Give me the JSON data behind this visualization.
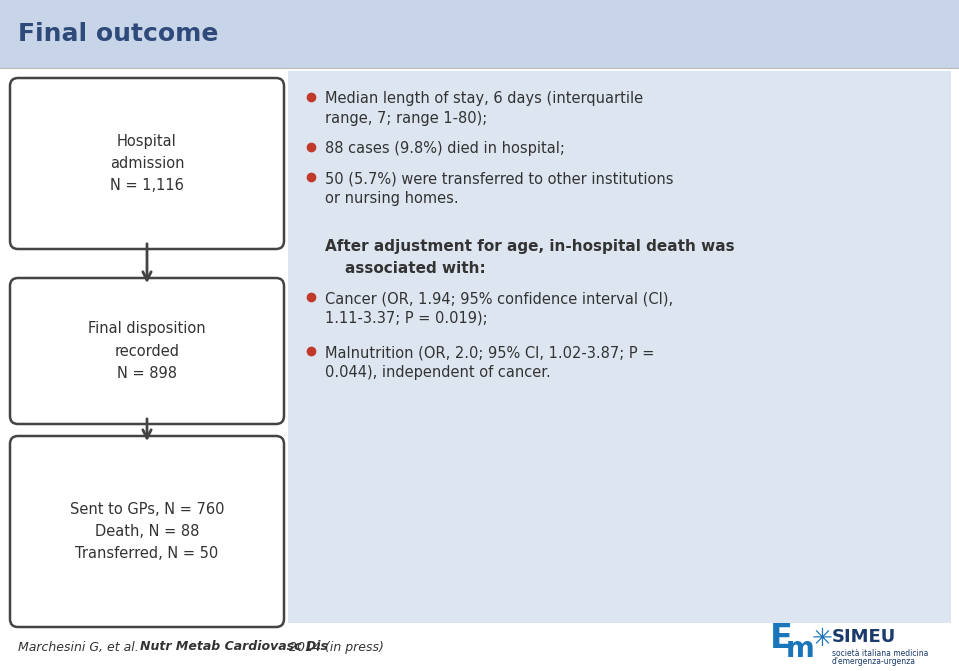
{
  "title": "Final outcome",
  "title_color": "#2E4A7A",
  "title_fontsize": 18,
  "bg_color": "#FFFFFF",
  "header_bar_color": "#C8D4E8",
  "content_bg_color": "#DDE6F0",
  "box_bg": "#FFFFFF",
  "box_border": "#444444",
  "box_texts": [
    [
      "Hospital",
      "admission",
      "N = 1,116"
    ],
    [
      "Final disposition",
      "recorded",
      "N = 898"
    ],
    [
      "Sent to GPs, N = 760",
      "Death, N = 88",
      "Transferred, N = 50"
    ]
  ],
  "bullet_color": "#C0392B",
  "bullet_items_top": [
    "Median length of stay, 6 days (interquartile\nrange, 7; range 1-80);",
    "88 cases (9.8%) died in hospital;",
    "50 (5.7%) were transferred to other institutions\nor nursing homes."
  ],
  "bold_text_line1": "After adjustment for age, in-hospital death was",
  "bold_text_line2": "associated with:",
  "bullet_items_bottom": [
    "Cancer (OR, 1.94; 95% confidence interval (CI),\n1.11-3.37; P = 0.019);",
    "Malnutrition (OR, 2.0; 95% CI, 1.02-3.87; P =\n0.044), independent of cancer."
  ],
  "footer_normal1": "Marchesini G, et al. ",
  "footer_bold": "Nutr Metab Cardiovasc Dis",
  "footer_normal2": " 2014 (in press)",
  "footer_color": "#333333",
  "text_color": "#333333",
  "arrow_color": "#444444",
  "simeu_blue": "#1B75BB",
  "simeu_dark": "#1A3A6B"
}
